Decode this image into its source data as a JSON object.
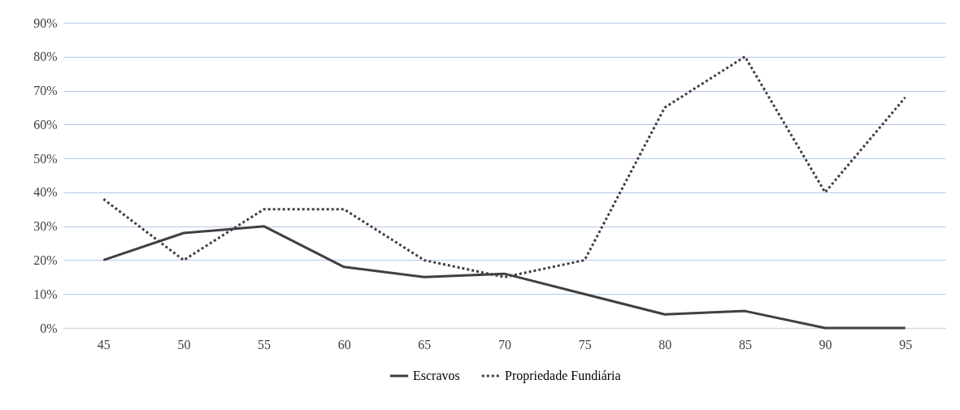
{
  "chart_data": {
    "type": "line",
    "categories": [
      "45",
      "50",
      "55",
      "60",
      "65",
      "70",
      "75",
      "80",
      "85",
      "90",
      "95"
    ],
    "series": [
      {
        "name": "Escravos",
        "color": "#404040",
        "line_style": "solid",
        "values": [
          20,
          28,
          30,
          18,
          15,
          16,
          10,
          4,
          5,
          0,
          0
        ]
      },
      {
        "name": "Propriedade Fundiária",
        "color": "#404040",
        "line_style": "dotted",
        "values": [
          38,
          20,
          35,
          35,
          20,
          15,
          20,
          65,
          80,
          40,
          68
        ]
      }
    ],
    "ylim": [
      0,
      90
    ],
    "yticks": [
      {
        "value": 0,
        "label": "0%"
      },
      {
        "value": 10,
        "label": "10%"
      },
      {
        "value": 20,
        "label": "20%"
      },
      {
        "value": 30,
        "label": "30%"
      },
      {
        "value": 40,
        "label": "40%"
      },
      {
        "value": 50,
        "label": "50%"
      },
      {
        "value": 60,
        "label": "60%"
      },
      {
        "value": 70,
        "label": "70%"
      },
      {
        "value": 80,
        "label": "80%"
      },
      {
        "value": 90,
        "label": "90%"
      }
    ],
    "grid": "y",
    "legend": "bottom"
  }
}
